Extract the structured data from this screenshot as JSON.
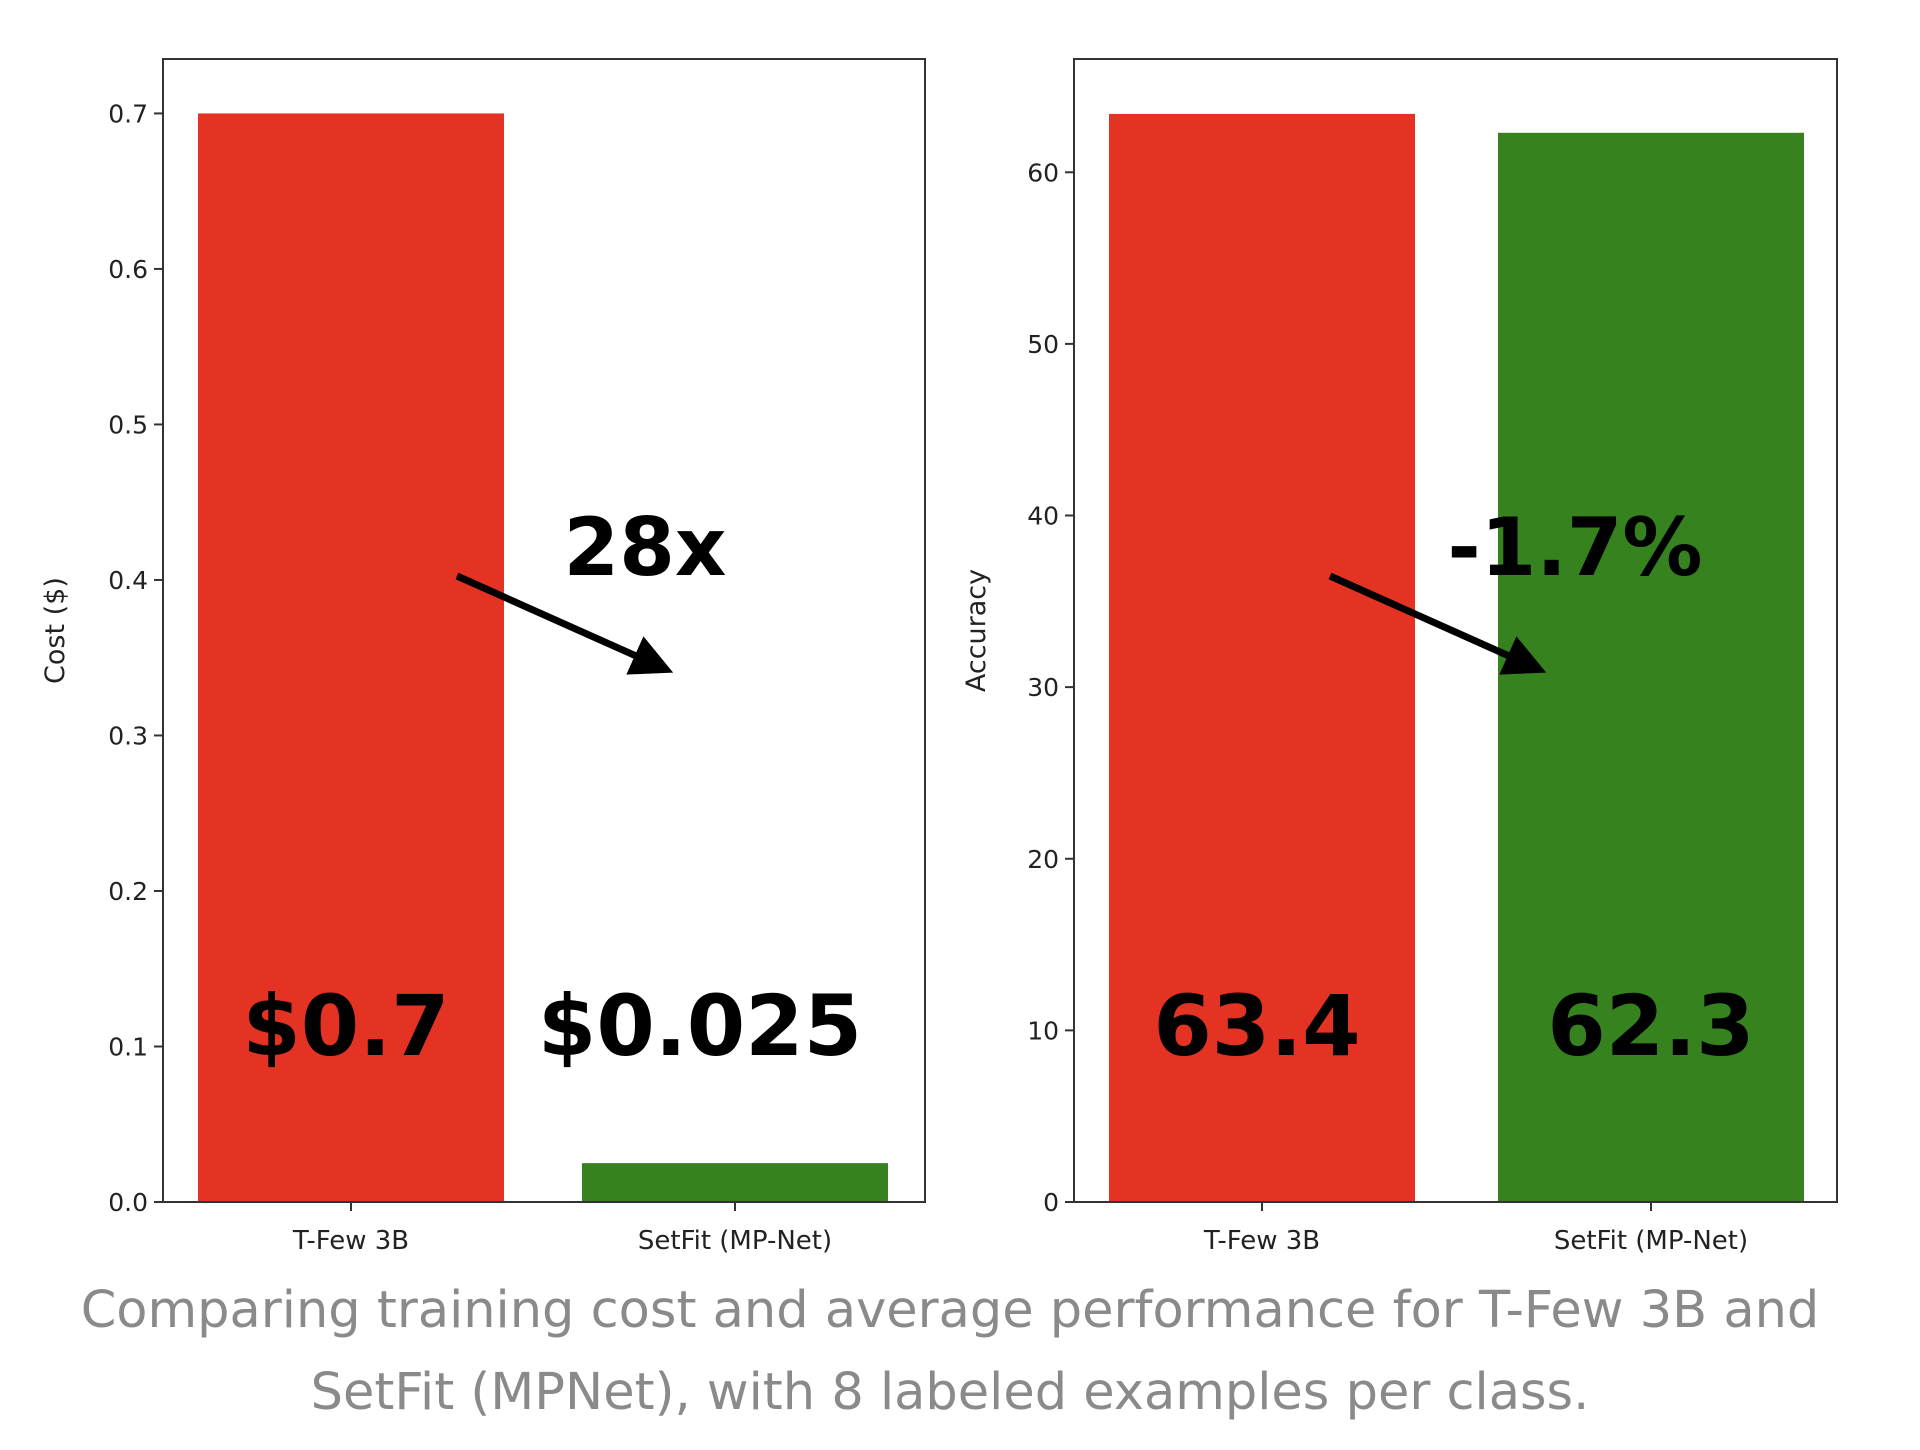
{
  "caption": {
    "line1": "Comparing training cost and average performance for T-Few 3B and",
    "line2": "SetFit (MPNet), with 8 labeled examples per class."
  },
  "colors": {
    "red": "#e43322",
    "green": "#35821f",
    "axis": "#333333",
    "text": "#000000"
  },
  "chart_data": [
    {
      "type": "bar",
      "categories": [
        "T-Few 3B",
        "SetFit (MP-Net)"
      ],
      "values": [
        0.7,
        0.025
      ],
      "bar_colors": [
        "red",
        "green"
      ],
      "value_labels": [
        "$0.7",
        "$0.025"
      ],
      "ylabel": "Cost ($)",
      "xlabel": "",
      "ylim": [
        0,
        0.735
      ],
      "yticks": [
        0.0,
        0.1,
        0.2,
        0.3,
        0.4,
        0.5,
        0.6,
        0.7
      ],
      "ytick_labels": [
        "0.0",
        "0.1",
        "0.2",
        "0.3",
        "0.4",
        "0.5",
        "0.6",
        "0.7"
      ],
      "annotation": {
        "text": "28x",
        "arrow": "down-right, from T-Few 3B bar toward SetFit bar"
      }
    },
    {
      "type": "bar",
      "categories": [
        "T-Few 3B",
        "SetFit (MP-Net)"
      ],
      "values": [
        63.4,
        62.3
      ],
      "bar_colors": [
        "red",
        "green"
      ],
      "value_labels": [
        "63.4",
        "62.3"
      ],
      "ylabel": "Accuracy",
      "xlabel": "",
      "ylim": [
        0,
        66.6
      ],
      "yticks": [
        0,
        10,
        20,
        30,
        40,
        50,
        60
      ],
      "ytick_labels": [
        "0",
        "10",
        "20",
        "30",
        "40",
        "50",
        "60"
      ],
      "annotation": {
        "text": "-1.7%",
        "arrow": "down-right, from T-Few 3B bar toward SetFit bar"
      }
    }
  ]
}
